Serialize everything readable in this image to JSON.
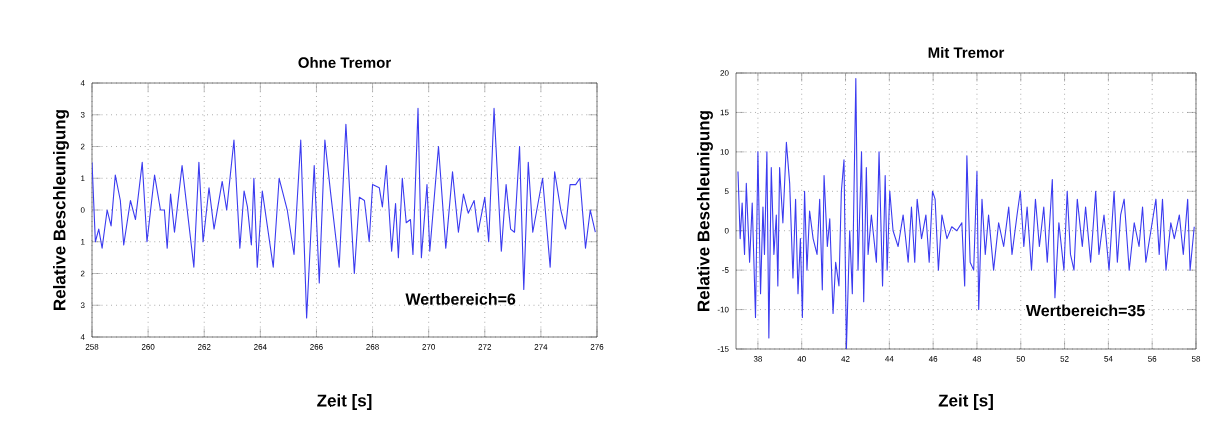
{
  "chart_data": [
    {
      "type": "line",
      "title": "Ohne Tremor",
      "xlabel": "Zeit [s]",
      "ylabel": "Relative Beschleunigung",
      "xlim": [
        258,
        276
      ],
      "xticks": [
        258,
        260,
        262,
        264,
        266,
        268,
        270,
        272,
        274,
        276
      ],
      "ylim": [
        -4,
        4
      ],
      "yticks": [
        {
          "value": -4,
          "label": "4"
        },
        {
          "value": -3,
          "label": "3"
        },
        {
          "value": -2,
          "label": "2"
        },
        {
          "value": -1,
          "label": "1"
        },
        0,
        1,
        2,
        3,
        4
      ],
      "grid": true,
      "annotations": [
        "Wertbereich=6"
      ],
      "x": [
        258.0,
        258.12,
        258.24,
        258.36,
        258.54,
        258.68,
        258.83,
        259.01,
        259.13,
        259.37,
        259.55,
        259.79,
        259.96,
        260.23,
        260.44,
        260.58,
        260.68,
        260.8,
        260.94,
        261.21,
        261.63,
        261.81,
        261.96,
        262.17,
        262.35,
        262.64,
        262.8,
        263.06,
        263.27,
        263.42,
        263.54,
        263.68,
        263.77,
        263.89,
        264.07,
        264.46,
        264.67,
        264.96,
        265.2,
        265.44,
        265.65,
        265.92,
        266.1,
        266.3,
        266.51,
        266.81,
        267.05,
        267.35,
        267.53,
        267.71,
        267.88,
        268.0,
        268.24,
        268.35,
        268.49,
        268.68,
        268.82,
        268.92,
        269.06,
        269.2,
        269.35,
        269.44,
        269.62,
        269.74,
        269.94,
        270.04,
        270.35,
        270.61,
        270.85,
        271.06,
        271.24,
        271.41,
        271.62,
        271.76,
        272.0,
        272.14,
        272.33,
        272.59,
        272.76,
        272.92,
        273.06,
        273.24,
        273.39,
        273.55,
        273.71,
        274.06,
        274.33,
        274.49,
        274.71,
        274.88,
        275.04,
        275.24,
        275.39,
        275.59,
        275.76,
        275.94
      ],
      "series": [
        {
          "color": "#3b3bf0",
          "values": [
            1.5,
            -1,
            -0.6,
            -1.2,
            0,
            -0.5,
            1.1,
            0.3,
            -1.1,
            0.3,
            -0.3,
            1.5,
            -1,
            1.1,
            0,
            0,
            -1.2,
            0.5,
            -0.7,
            1.4,
            -1.8,
            1.5,
            -1,
            0.7,
            -0.6,
            0.9,
            0,
            2.2,
            -1.2,
            0.6,
            0.1,
            -1.1,
            1.0,
            -1.8,
            0.6,
            -1.8,
            1,
            0,
            -1.4,
            2.2,
            -3.4,
            1.4,
            -2.3,
            2.2,
            0.5,
            -1.8,
            2.7,
            -2.0,
            0.4,
            0.3,
            -1,
            0.8,
            0.7,
            0.1,
            1.4,
            -1.3,
            0.2,
            -1.5,
            1.0,
            -0.4,
            -0.3,
            -1.4,
            3.2,
            -1.5,
            0.8,
            -1.3,
            2.0,
            -1.2,
            1.2,
            -0.7,
            0.5,
            -0.1,
            0.3,
            -0.7,
            0.4,
            -1.0,
            3.2,
            -1.3,
            0.8,
            -0.6,
            -0.7,
            2.0,
            -2.5,
            1.5,
            -0.7,
            1.0,
            -1.8,
            1.2,
            0.0,
            -0.6,
            0.8,
            0.8,
            1.0,
            -1.2,
            0.0,
            -0.7
          ]
        }
      ]
    },
    {
      "type": "line",
      "title": "Mit Tremor",
      "xlabel": "Zeit [s]",
      "ylabel": "Relative Beschleunigung",
      "xlim": [
        37,
        58
      ],
      "xticks": [
        38,
        40,
        42,
        44,
        46,
        48,
        50,
        52,
        54,
        56,
        58
      ],
      "ylim": [
        -15,
        20
      ],
      "yticks": [
        -15,
        -10,
        -5,
        0,
        5,
        10,
        15,
        20
      ],
      "grid": true,
      "annotations": [
        "Wertbereich=35"
      ],
      "x": [
        37.09,
        37.19,
        37.28,
        37.39,
        37.47,
        37.62,
        37.74,
        37.89,
        38.0,
        38.12,
        38.23,
        38.3,
        38.41,
        38.5,
        38.61,
        38.73,
        38.84,
        38.91,
        38.99,
        39.14,
        39.3,
        39.45,
        39.6,
        39.72,
        39.83,
        39.94,
        40.03,
        40.13,
        40.24,
        40.36,
        40.52,
        40.7,
        40.82,
        40.94,
        41.02,
        41.17,
        41.28,
        41.43,
        41.55,
        41.7,
        41.81,
        41.93,
        42.04,
        42.19,
        42.31,
        42.47,
        42.57,
        42.73,
        42.83,
        42.95,
        43.03,
        43.18,
        43.41,
        43.53,
        43.69,
        43.81,
        43.9,
        44.02,
        44.17,
        44.4,
        44.63,
        44.86,
        45.01,
        45.16,
        45.27,
        45.47,
        45.67,
        45.82,
        45.97,
        46.09,
        46.24,
        46.4,
        46.63,
        46.85,
        47.08,
        47.31,
        47.44,
        47.54,
        47.69,
        47.85,
        48.0,
        48.08,
        48.23,
        48.38,
        48.53,
        48.76,
        48.99,
        49.22,
        49.45,
        49.6,
        49.83,
        49.98,
        50.14,
        50.29,
        50.49,
        50.67,
        50.85,
        51.05,
        51.21,
        51.44,
        51.56,
        51.74,
        51.97,
        52.12,
        52.27,
        52.43,
        52.58,
        52.81,
        52.96,
        53.19,
        53.42,
        53.57,
        53.8,
        54.03,
        54.26,
        54.41,
        54.56,
        54.72,
        54.95,
        55.18,
        55.4,
        55.56,
        55.71,
        55.94,
        56.17,
        56.32,
        56.47,
        56.63,
        56.85,
        57.01,
        57.24,
        57.42,
        57.62,
        57.73,
        57.92
      ],
      "series": [
        {
          "color": "#3b3bf0",
          "values": [
            7.5,
            -1,
            3.5,
            -3,
            6,
            -4,
            3.5,
            -11,
            10,
            -8,
            3,
            -3,
            10,
            -13.6,
            8,
            -3,
            2,
            -7,
            8,
            1,
            11.2,
            6,
            -6,
            4,
            -8,
            -1,
            -11,
            5,
            -5,
            2.5,
            -1,
            -3,
            4,
            -7.5,
            7,
            -2,
            1.5,
            -10.5,
            -4,
            -7,
            5,
            9,
            -15,
            0,
            -8,
            19.3,
            -5,
            10,
            -9,
            8,
            -3,
            2,
            -4,
            10,
            -7,
            7,
            -5,
            5,
            0,
            -2,
            2,
            -4,
            3,
            -4,
            4,
            -1,
            2,
            -4,
            5,
            4,
            -5,
            2,
            -1,
            0.5,
            0,
            1,
            -7,
            9.5,
            -4,
            -5,
            7.5,
            -10,
            4,
            -3,
            2,
            -5,
            1,
            -2,
            3,
            -3,
            2,
            5,
            -2,
            3,
            -5,
            4,
            -2,
            3,
            -4,
            6.5,
            -8.5,
            1,
            -5,
            5,
            -3,
            -5,
            4,
            -2,
            3,
            -4,
            5,
            -3,
            2,
            -5,
            5,
            -4,
            2,
            4,
            -5,
            1,
            -2,
            3,
            -4,
            0,
            4,
            -3,
            4,
            -5,
            1,
            -1,
            2,
            -3,
            4,
            -5,
            0.5
          ]
        }
      ]
    }
  ]
}
